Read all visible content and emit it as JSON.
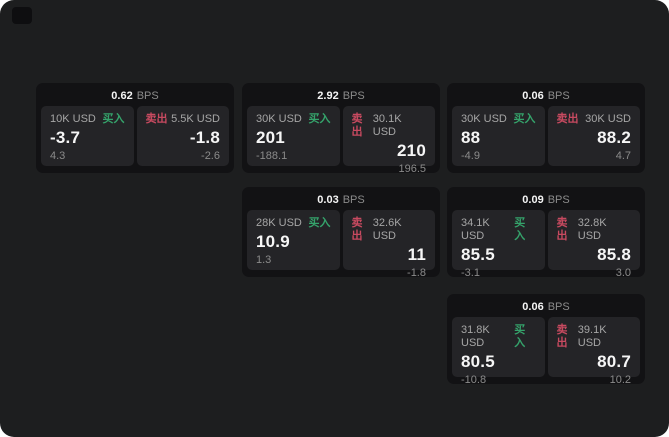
{
  "units": {
    "bps": "BPS"
  },
  "colors": {
    "background": "#1d1e1f",
    "card": "#121214",
    "panel": "#242427",
    "buy_green": "#35a36b",
    "sell_red": "#c84a60",
    "text_primary": "#f5f5f5",
    "text_muted": "#8b8b8b"
  },
  "cards": [
    {
      "bps": "0.62",
      "buy": {
        "amount": "10K USD",
        "side": "买入",
        "price": "-3.7",
        "delta": "4.3"
      },
      "sell": {
        "side": "卖出",
        "amount": "5.5K USD",
        "price": "-1.8",
        "delta": "-2.6"
      }
    },
    {
      "bps": "2.92",
      "buy": {
        "amount": "30K USD",
        "side": "买入",
        "price": "201",
        "delta": "-188.1"
      },
      "sell": {
        "side": "卖出",
        "amount": "30.1K USD",
        "price": "210",
        "delta": "196.5"
      }
    },
    {
      "bps": "0.06",
      "buy": {
        "amount": "30K USD",
        "side": "买入",
        "price": "88",
        "delta": "-4.9"
      },
      "sell": {
        "side": "卖出",
        "amount": "30K USD",
        "price": "88.2",
        "delta": "4.7"
      }
    },
    {
      "bps": "0.03",
      "buy": {
        "amount": "28K USD",
        "side": "买入",
        "price": "10.9",
        "delta": "1.3"
      },
      "sell": {
        "side": "卖出",
        "amount": "32.6K USD",
        "price": "11",
        "delta": "-1.8"
      }
    },
    {
      "bps": "0.09",
      "buy": {
        "amount": "34.1K USD",
        "side": "买入",
        "price": "85.5",
        "delta": "-3.1"
      },
      "sell": {
        "side": "卖出",
        "amount": "32.8K USD",
        "price": "85.8",
        "delta": "3.0"
      }
    },
    {
      "bps": "0.06",
      "buy": {
        "amount": "31.8K USD",
        "side": "买入",
        "price": "80.5",
        "delta": "-10.8"
      },
      "sell": {
        "side": "卖出",
        "amount": "39.1K USD",
        "price": "80.7",
        "delta": "10.2"
      }
    }
  ]
}
